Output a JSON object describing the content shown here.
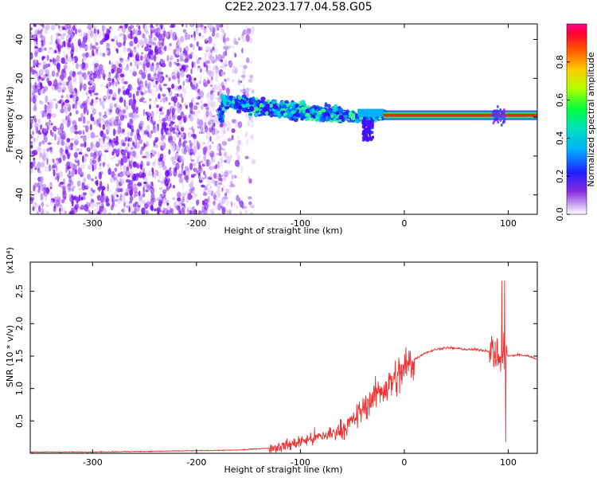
{
  "title": "C2E2.2023.177.04.58.G05",
  "chart_data": [
    {
      "type": "heatmap",
      "xlabel": "Height of straight line (km)",
      "ylabel": "Frequency (Hz)",
      "xlim": [
        -360,
        128
      ],
      "ylim": [
        -50,
        48
      ],
      "xticks": [
        -300,
        -200,
        -100,
        0,
        100
      ],
      "xtick_labels": [
        "-300",
        "-200",
        "-100",
        "0",
        "100"
      ],
      "yticks": [
        -40,
        -20,
        0,
        20,
        40
      ],
      "ytick_labels": [
        "-40",
        "-20",
        "0",
        "20",
        "40"
      ],
      "colorbar": {
        "label": "Normalized spectral amplitude",
        "range": [
          0.0,
          1.0
        ],
        "ticks": [
          0.0,
          0.2,
          0.4,
          0.6,
          0.8
        ],
        "tick_labels": [
          "0.0",
          "0.2",
          "0.4",
          "0.6",
          "0.8"
        ]
      },
      "features": {
        "noise_region_x": [
          -360,
          -170
        ],
        "band_center_hz": [
          [
            -175,
            8
          ],
          [
            -120,
            4
          ],
          [
            -80,
            2
          ],
          [
            -45,
            0
          ],
          [
            -20,
            1
          ],
          [
            0,
            1
          ],
          [
            128,
            1
          ]
        ],
        "strong_line_start_x": -20
      },
      "grid": false
    },
    {
      "type": "line",
      "xlabel": "Height of straight line (km)",
      "ylabel": "SNR (10 * v/v)",
      "y_scale_note": "(x10⁴)",
      "xlim": [
        -360,
        128
      ],
      "ylim": [
        0,
        2.95
      ],
      "xticks": [
        -300,
        -200,
        -100,
        0,
        100
      ],
      "xtick_labels": [
        "-300",
        "-200",
        "-100",
        "0",
        "100"
      ],
      "yticks": [
        0.5,
        1.0,
        1.5,
        2.0,
        2.5
      ],
      "ytick_labels": [
        "0.5",
        "1.0",
        "1.5",
        "2.0",
        "2.5"
      ],
      "series": [
        {
          "color": "#ee3333",
          "x": [
            -360,
            -300,
            -250,
            -200,
            -160,
            -130,
            -110,
            -100,
            -90,
            -70,
            -55,
            -45,
            -35,
            -25,
            -15,
            -5,
            0,
            10,
            20,
            30,
            40,
            50,
            60,
            70,
            80,
            85,
            90,
            95,
            100,
            110,
            120,
            128
          ],
          "y": [
            0.02,
            0.02,
            0.03,
            0.04,
            0.05,
            0.08,
            0.13,
            0.18,
            0.22,
            0.3,
            0.42,
            0.58,
            0.78,
            0.95,
            1.05,
            1.2,
            1.3,
            1.45,
            1.55,
            1.6,
            1.63,
            1.62,
            1.6,
            1.6,
            1.58,
            1.55,
            1.5,
            1.45,
            1.5,
            1.52,
            1.5,
            1.45
          ]
        }
      ],
      "grid": false
    }
  ]
}
